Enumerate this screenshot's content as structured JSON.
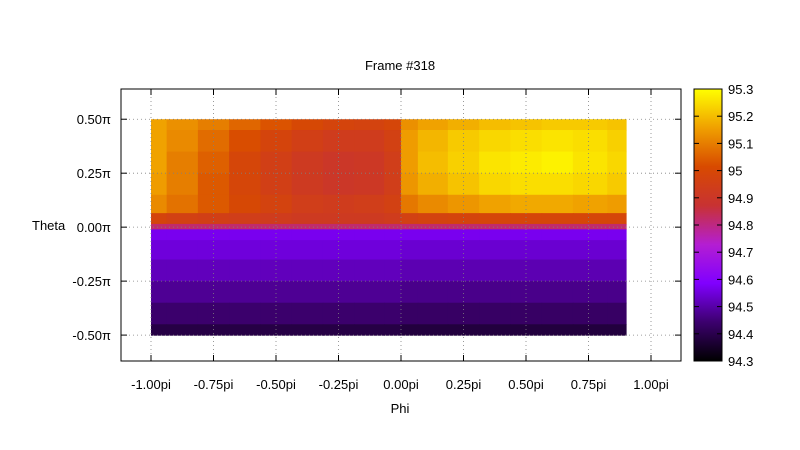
{
  "chart_data": {
    "type": "heatmap",
    "title": "Frame #318",
    "xlabel": "Phi",
    "ylabel": "Theta",
    "xlim": [
      -1.12,
      1.12
    ],
    "ylim": [
      -0.62,
      0.64
    ],
    "x_ticks": [
      {
        "value": -1.0,
        "label": "-1.00pi"
      },
      {
        "value": -0.75,
        "label": "-0.75pi"
      },
      {
        "value": -0.5,
        "label": "-0.50pi"
      },
      {
        "value": -0.25,
        "label": "-0.25pi"
      },
      {
        "value": 0.0,
        "label": "0.00pi"
      },
      {
        "value": 0.25,
        "label": "0.25pi"
      },
      {
        "value": 0.5,
        "label": "0.50pi"
      },
      {
        "value": 0.75,
        "label": "0.75pi"
      },
      {
        "value": 1.0,
        "label": "1.00pi"
      }
    ],
    "y_ticks": [
      {
        "value": 0.5,
        "label": "0.50π"
      },
      {
        "value": 0.25,
        "label": "0.25π"
      },
      {
        "value": 0.0,
        "label": "0.00π"
      },
      {
        "value": -0.25,
        "label": "-0.25π"
      },
      {
        "value": -0.5,
        "label": "-0.50π"
      }
    ],
    "colorbar": {
      "range": [
        94.3,
        95.3
      ],
      "ticks": [
        "95.3",
        "95.2",
        "95.1",
        "95",
        "94.9",
        "94.8",
        "94.7",
        "94.6",
        "94.5",
        "94.4",
        "94.3"
      ],
      "tick_values": [
        95.3,
        95.2,
        95.1,
        95.0,
        94.9,
        94.8,
        94.7,
        94.6,
        94.5,
        94.4,
        94.3
      ],
      "palette": [
        "#000000",
        "#3c006e",
        "#8000ff",
        "#b41ed2",
        "#c83232",
        "#d84a00",
        "#f0a000",
        "#ffff00"
      ]
    },
    "phi_centers": [
      -1.0,
      -0.875,
      -0.75,
      -0.625,
      -0.5,
      -0.375,
      -0.25,
      -0.125,
      -0.01,
      0.01,
      0.125,
      0.25,
      0.375,
      0.5,
      0.625,
      0.75,
      0.9
    ],
    "theta_centers": [
      0.5,
      0.4,
      0.3,
      0.2,
      0.1,
      0.03,
      0.0,
      -0.02,
      -0.1,
      -0.2,
      -0.3,
      -0.4,
      -0.5
    ],
    "values": [
      [
        95.16,
        95.13,
        95.1,
        95.06,
        95.03,
        95.0,
        94.98,
        94.97,
        94.99,
        95.13,
        95.16,
        95.18,
        95.2,
        95.21,
        95.22,
        95.22,
        95.21
      ],
      [
        95.16,
        95.12,
        95.07,
        95.02,
        94.98,
        94.95,
        94.93,
        94.93,
        94.96,
        95.15,
        95.19,
        95.22,
        95.24,
        95.25,
        95.26,
        95.25,
        95.23
      ],
      [
        95.16,
        95.1,
        95.05,
        94.99,
        94.95,
        94.92,
        94.9,
        94.91,
        94.94,
        95.15,
        95.2,
        95.23,
        95.26,
        95.27,
        95.28,
        95.26,
        95.24
      ],
      [
        95.15,
        95.1,
        95.04,
        94.99,
        94.95,
        94.92,
        94.9,
        94.91,
        94.94,
        95.14,
        95.18,
        95.21,
        95.24,
        95.25,
        95.25,
        95.24,
        95.22
      ],
      [
        95.12,
        95.08,
        95.04,
        95.0,
        94.97,
        94.94,
        94.93,
        94.94,
        94.96,
        95.09,
        95.12,
        95.14,
        95.16,
        95.17,
        95.17,
        95.16,
        95.15
      ],
      [
        94.98,
        94.96,
        94.95,
        94.94,
        94.93,
        94.92,
        94.92,
        94.92,
        94.93,
        94.96,
        94.97,
        94.98,
        94.99,
        94.99,
        94.99,
        94.99,
        94.99
      ],
      [
        94.82,
        94.82,
        94.82,
        94.82,
        94.82,
        94.82,
        94.82,
        94.82,
        94.82,
        94.82,
        94.82,
        94.82,
        94.82,
        94.82,
        94.82,
        94.82,
        94.82
      ],
      [
        94.57,
        94.57,
        94.57,
        94.57,
        94.57,
        94.57,
        94.57,
        94.57,
        94.57,
        94.57,
        94.57,
        94.57,
        94.57,
        94.57,
        94.57,
        94.57,
        94.57
      ],
      [
        94.55,
        94.55,
        94.55,
        94.55,
        94.55,
        94.55,
        94.55,
        94.55,
        94.55,
        94.54,
        94.54,
        94.54,
        94.54,
        94.54,
        94.54,
        94.54,
        94.54
      ],
      [
        94.52,
        94.52,
        94.52,
        94.52,
        94.52,
        94.52,
        94.52,
        94.52,
        94.52,
        94.51,
        94.51,
        94.51,
        94.51,
        94.51,
        94.51,
        94.51,
        94.51
      ],
      [
        94.48,
        94.48,
        94.48,
        94.48,
        94.48,
        94.48,
        94.48,
        94.48,
        94.48,
        94.47,
        94.47,
        94.47,
        94.47,
        94.47,
        94.47,
        94.47,
        94.47
      ],
      [
        94.44,
        94.44,
        94.44,
        94.44,
        94.44,
        94.44,
        94.44,
        94.44,
        94.44,
        94.43,
        94.43,
        94.43,
        94.43,
        94.43,
        94.43,
        94.43,
        94.43
      ],
      [
        94.39,
        94.39,
        94.39,
        94.39,
        94.39,
        94.39,
        94.39,
        94.39,
        94.39,
        94.38,
        94.38,
        94.38,
        94.38,
        94.38,
        94.38,
        94.38,
        94.38
      ]
    ],
    "grid": true
  }
}
